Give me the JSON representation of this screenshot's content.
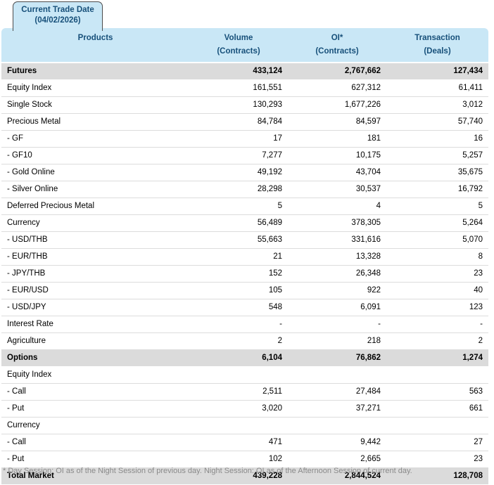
{
  "tab": {
    "line1": "Current Trade Date",
    "line2": "(04/02/2026)"
  },
  "table": {
    "columns": [
      {
        "label": "Products",
        "unit": ""
      },
      {
        "label": "Volume",
        "unit": "(Contracts)"
      },
      {
        "label": "OI*",
        "unit": "(Contracts)"
      },
      {
        "label": "Transaction",
        "unit": "(Deals)"
      }
    ],
    "rows": [
      {
        "product": "Futures",
        "volume": "433,124",
        "oi": "2,767,662",
        "transaction": "127,434",
        "style": "section"
      },
      {
        "product": "Equity Index",
        "volume": "161,551",
        "oi": "627,312",
        "transaction": "61,411",
        "style": "normal"
      },
      {
        "product": "Single Stock",
        "volume": "130,293",
        "oi": "1,677,226",
        "transaction": "3,012",
        "style": "normal"
      },
      {
        "product": "Precious Metal",
        "volume": "84,784",
        "oi": "84,597",
        "transaction": "57,740",
        "style": "normal"
      },
      {
        "product": "- GF",
        "volume": "17",
        "oi": "181",
        "transaction": "16",
        "style": "normal"
      },
      {
        "product": "- GF10",
        "volume": "7,277",
        "oi": "10,175",
        "transaction": "5,257",
        "style": "normal"
      },
      {
        "product": "- Gold Online",
        "volume": "49,192",
        "oi": "43,704",
        "transaction": "35,675",
        "style": "normal"
      },
      {
        "product": "- Silver Online",
        "volume": "28,298",
        "oi": "30,537",
        "transaction": "16,792",
        "style": "normal"
      },
      {
        "product": "Deferred Precious Metal",
        "volume": "5",
        "oi": "4",
        "transaction": "5",
        "style": "normal"
      },
      {
        "product": "Currency",
        "volume": "56,489",
        "oi": "378,305",
        "transaction": "5,264",
        "style": "normal"
      },
      {
        "product": "- USD/THB",
        "volume": "55,663",
        "oi": "331,616",
        "transaction": "5,070",
        "style": "normal"
      },
      {
        "product": "- EUR/THB",
        "volume": "21",
        "oi": "13,328",
        "transaction": "8",
        "style": "normal"
      },
      {
        "product": "- JPY/THB",
        "volume": "152",
        "oi": "26,348",
        "transaction": "23",
        "style": "normal"
      },
      {
        "product": "- EUR/USD",
        "volume": "105",
        "oi": "922",
        "transaction": "40",
        "style": "normal"
      },
      {
        "product": "- USD/JPY",
        "volume": "548",
        "oi": "6,091",
        "transaction": "123",
        "style": "normal"
      },
      {
        "product": "Interest Rate",
        "volume": "-",
        "oi": "-",
        "transaction": "-",
        "style": "normal"
      },
      {
        "product": "Agriculture",
        "volume": "2",
        "oi": "218",
        "transaction": "2",
        "style": "normal"
      },
      {
        "product": "Options",
        "volume": "6,104",
        "oi": "76,862",
        "transaction": "1,274",
        "style": "section"
      },
      {
        "product": "Equity Index",
        "volume": "",
        "oi": "",
        "transaction": "",
        "style": "subheader"
      },
      {
        "product": "- Call",
        "volume": "2,511",
        "oi": "27,484",
        "transaction": "563",
        "style": "normal"
      },
      {
        "product": "- Put",
        "volume": "3,020",
        "oi": "37,271",
        "transaction": "661",
        "style": "normal"
      },
      {
        "product": "Currency",
        "volume": "",
        "oi": "",
        "transaction": "",
        "style": "subheader"
      },
      {
        "product": "- Call",
        "volume": "471",
        "oi": "9,442",
        "transaction": "27",
        "style": "normal"
      },
      {
        "product": "- Put",
        "volume": "102",
        "oi": "2,665",
        "transaction": "23",
        "style": "normal"
      },
      {
        "product": "Total Market",
        "volume": "439,228",
        "oi": "2,844,524",
        "transaction": "128,708",
        "style": "section"
      }
    ]
  },
  "footnote": "* Day Session: OI as of the Night Session of previous day. Night Session: OI as of the Afternoon Session of current day.",
  "colors": {
    "header_bg": "#c9e7f6",
    "header_text": "#17507a",
    "section_bg": "#dbdbdb",
    "row_separator": "#dcdcdc",
    "footnote_text": "#8a8a8a"
  }
}
